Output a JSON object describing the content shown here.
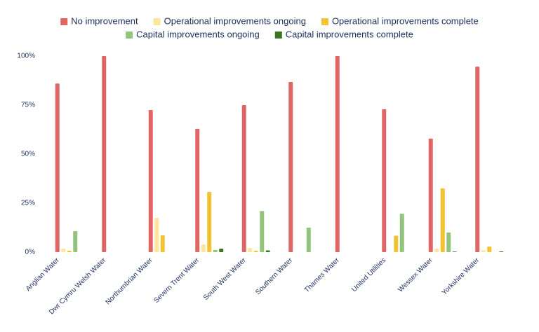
{
  "chart_data": {
    "type": "bar",
    "categories": [
      "Anglian Water",
      "Dwr Cymru Welsh Water",
      "Northumbrian Water",
      "Severn Trent Water",
      "South West Water",
      "Southern Water",
      "Thames Water",
      "United Utilities",
      "Wessex Water",
      "Yorkshire Water"
    ],
    "series": [
      {
        "name": "No improvement",
        "color": "#e06666",
        "values": [
          86,
          100,
          72.5,
          62.9,
          75,
          86.8,
          100,
          72.9,
          57.9,
          94.6
        ]
      },
      {
        "name": "Operational improvements ongoing",
        "color": "#ffe599",
        "values": [
          1.8,
          0,
          17.5,
          3.9,
          2.1,
          0,
          0,
          0,
          1.8,
          1
        ]
      },
      {
        "name": "Operational improvements complete",
        "color": "#f1c232",
        "values": [
          0.7,
          0,
          8.6,
          30.7,
          0.7,
          0,
          0,
          8.4,
          32.5,
          2.9
        ]
      },
      {
        "name": "Capital improvements ongoing",
        "color": "#93c47d",
        "values": [
          10.7,
          0,
          0,
          1.1,
          21,
          12.5,
          0,
          19.6,
          10,
          0
        ]
      },
      {
        "name": "Capital improvements complete",
        "color": "#38761d",
        "values": [
          0,
          0,
          0,
          1.8,
          0.9,
          0,
          0,
          0,
          0.3,
          0.4
        ]
      }
    ],
    "ylim": [
      0,
      100
    ],
    "yticks": [
      {
        "value": 0,
        "label": "0%"
      },
      {
        "value": 25,
        "label": "25%"
      },
      {
        "value": 50,
        "label": "50%"
      },
      {
        "value": 75,
        "label": "75%"
      },
      {
        "value": 100,
        "label": "100%"
      }
    ],
    "grid": false
  }
}
